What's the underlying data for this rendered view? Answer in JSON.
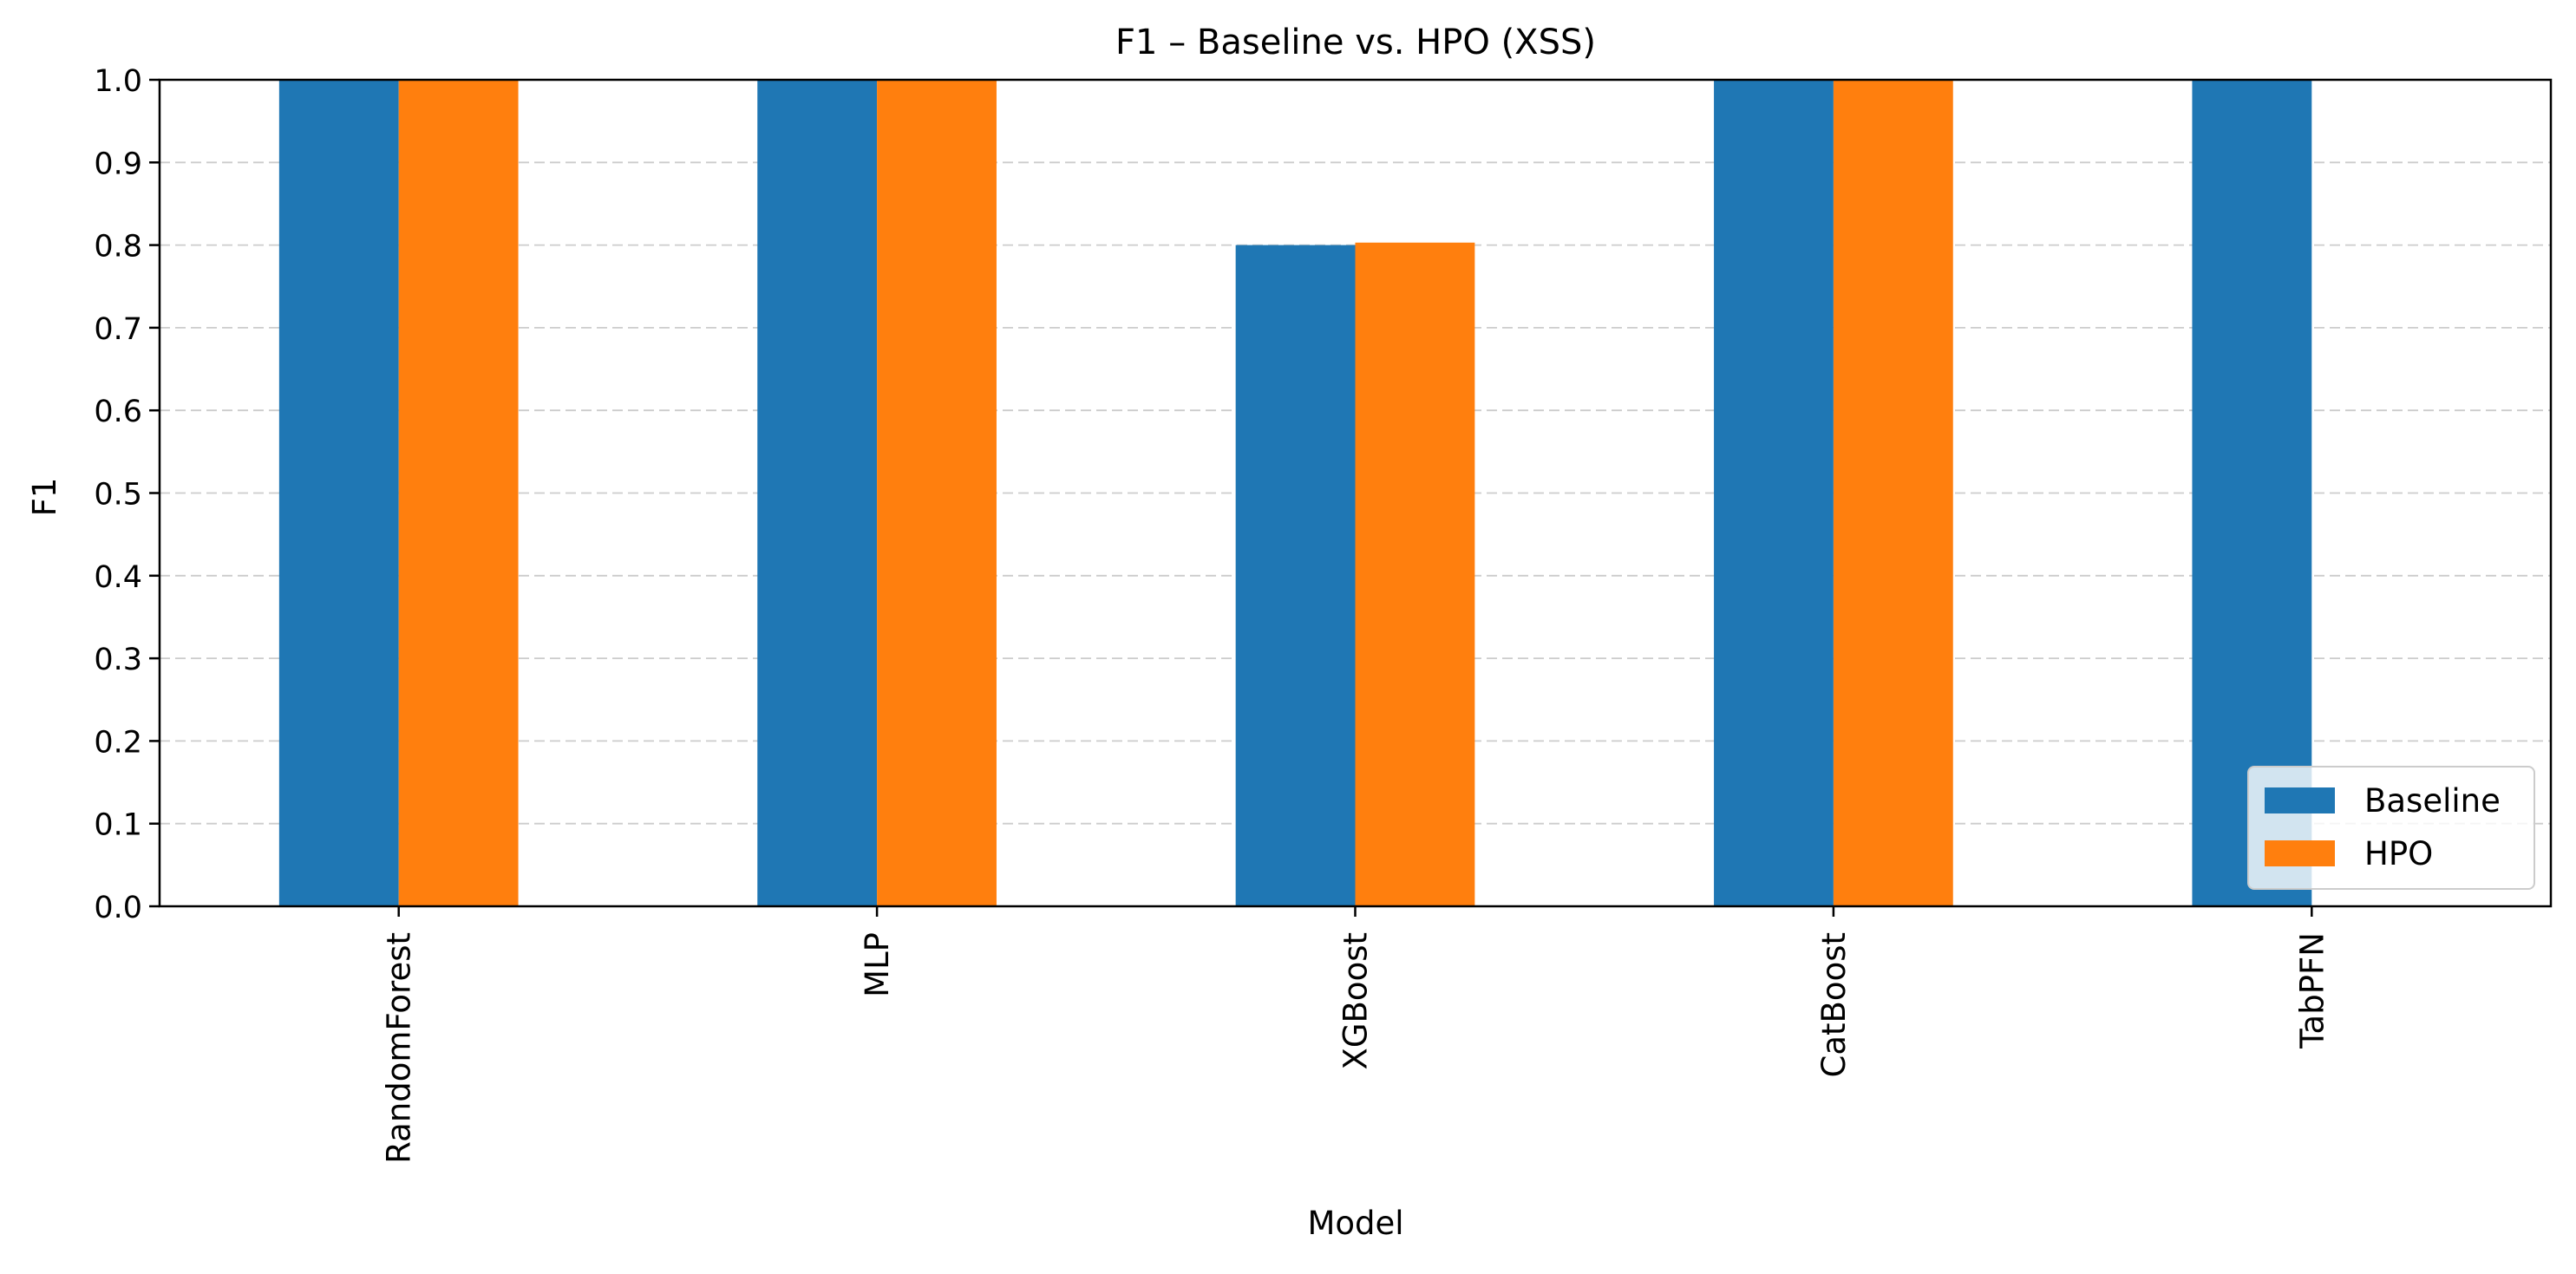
{
  "chart_data": {
    "type": "bar",
    "title": "F1 – Baseline vs. HPO (XSS)",
    "xlabel": "Model",
    "ylabel": "F1",
    "categories": [
      "RandomForest",
      "MLP",
      "XGBoost",
      "CatBoost",
      "TabPFN"
    ],
    "series": [
      {
        "name": "Baseline",
        "color": "#1f77b4",
        "values": [
          1.0,
          1.0,
          0.8,
          1.0,
          1.0
        ]
      },
      {
        "name": "HPO",
        "color": "#ff7f0e",
        "values": [
          1.0,
          1.0,
          0.803,
          1.0,
          null
        ]
      }
    ],
    "ylim": [
      0,
      1.0
    ],
    "yticks": [
      "0.0",
      "0.1",
      "0.2",
      "0.3",
      "0.4",
      "0.5",
      "0.6",
      "0.7",
      "0.8",
      "0.9",
      "1.0"
    ],
    "grid": "horizontal dashed",
    "legend_position": "lower-right"
  }
}
